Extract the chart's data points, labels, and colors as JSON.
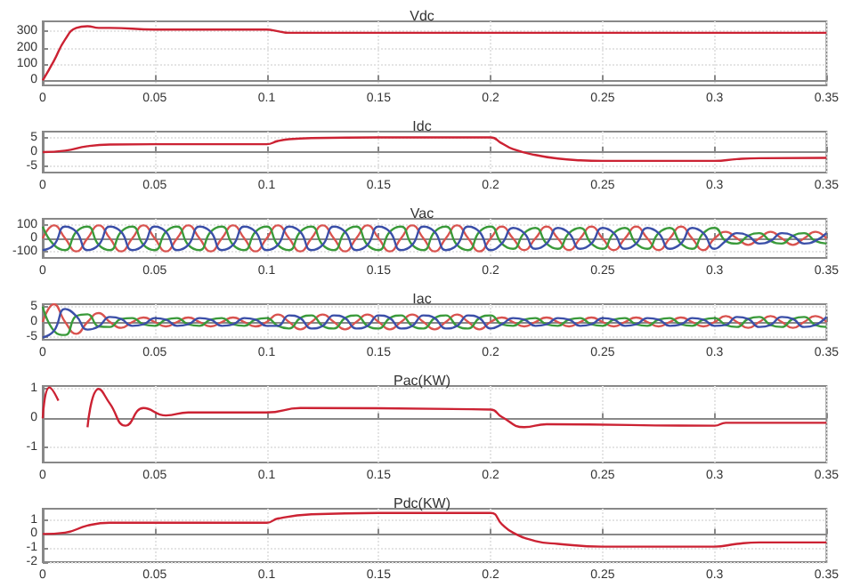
{
  "chart_data": [
    {
      "type": "line",
      "title": "Vdc",
      "x": [
        0,
        0.005,
        0.01,
        0.015,
        0.02,
        0.025,
        0.03,
        0.05,
        0.1,
        0.105,
        0.11,
        0.12,
        0.35
      ],
      "xlim": [
        0,
        0.35
      ],
      "xticks": [
        0,
        0.05,
        0.1,
        0.15,
        0.2,
        0.25,
        0.3,
        0.35
      ],
      "ylim": [
        -30,
        360
      ],
      "yticks": [
        0,
        100,
        200,
        300
      ],
      "grid": true,
      "marker": "none",
      "series": [
        {
          "color": "#cc2233",
          "values": [
            0,
            120,
            250,
            320,
            330,
            320,
            320,
            310,
            310,
            300,
            290,
            290,
            290
          ]
        }
      ]
    },
    {
      "type": "line",
      "title": "Idc",
      "x": [
        0,
        0.01,
        0.02,
        0.03,
        0.05,
        0.1,
        0.105,
        0.11,
        0.12,
        0.15,
        0.2,
        0.205,
        0.21,
        0.22,
        0.23,
        0.24,
        0.25,
        0.3,
        0.31,
        0.32,
        0.35
      ],
      "xlim": [
        0,
        0.35
      ],
      "xticks": [
        0,
        0.05,
        0.1,
        0.15,
        0.2,
        0.25,
        0.3,
        0.35
      ],
      "ylim": [
        -7,
        7
      ],
      "yticks": [
        -5,
        0,
        5
      ],
      "grid": true,
      "marker": "none",
      "series": [
        {
          "color": "#cc2233",
          "values": [
            0,
            0.5,
            2,
            2.6,
            2.7,
            2.7,
            3.8,
            4.4,
            4.8,
            5,
            5,
            3,
            1,
            -1,
            -2.2,
            -2.8,
            -3,
            -3,
            -2.4,
            -2.1,
            -2
          ]
        }
      ]
    },
    {
      "type": "line",
      "title": "Vac",
      "x": [
        0,
        0.005,
        0.01,
        0.015,
        0.02,
        0.025,
        0.03,
        0.035,
        0.04,
        0.045,
        0.05,
        0.055,
        0.06,
        0.065,
        0.07,
        0.075,
        0.08,
        0.085,
        0.09,
        0.095,
        0.1,
        0.105,
        0.11,
        0.115,
        0.12,
        0.125,
        0.13,
        0.135,
        0.14,
        0.145,
        0.15,
        0.155,
        0.16,
        0.165,
        0.17,
        0.175,
        0.18,
        0.185,
        0.19,
        0.195,
        0.2,
        0.205,
        0.21,
        0.215,
        0.22,
        0.225,
        0.23,
        0.235,
        0.24,
        0.245,
        0.25,
        0.255,
        0.26,
        0.265,
        0.27,
        0.275,
        0.28,
        0.285,
        0.29,
        0.295,
        0.3,
        0.305,
        0.31,
        0.315,
        0.32,
        0.325,
        0.33,
        0.335,
        0.34,
        0.345,
        0.35
      ],
      "xlim": [
        0,
        0.35
      ],
      "xticks": [
        0,
        0.05,
        0.1,
        0.15,
        0.2,
        0.25,
        0.3,
        0.35
      ],
      "ylim": [
        -150,
        150
      ],
      "yticks": [
        -100,
        0,
        100
      ],
      "grid": true,
      "marker": "none",
      "series": [
        {
          "color": "#d9534f",
          "values": [
            0,
            100,
            0,
            -100,
            0,
            100,
            0,
            -100,
            0,
            100,
            0,
            -100,
            0,
            100,
            0,
            -100,
            0,
            100,
            0,
            -100,
            0,
            100,
            0,
            -100,
            0,
            100,
            0,
            -100,
            0,
            100,
            0,
            -100,
            0,
            100,
            0,
            -100,
            0,
            100,
            0,
            -100,
            0,
            90,
            0,
            -90,
            0,
            90,
            0,
            -90,
            0,
            90,
            0,
            -90,
            0,
            90,
            0,
            -90,
            0,
            90,
            0,
            -90,
            0,
            50,
            0,
            -50,
            0,
            50,
            0,
            -50,
            0,
            50,
            0
          ]
        },
        {
          "color": "#3a9a3a",
          "values": [
            90,
            -50,
            -90,
            50,
            90,
            -50,
            -90,
            50,
            90,
            -50,
            -90,
            50,
            90,
            -50,
            -90,
            50,
            90,
            -50,
            -90,
            50,
            90,
            -50,
            -90,
            50,
            90,
            -50,
            -90,
            50,
            90,
            -50,
            -90,
            50,
            90,
            -50,
            -90,
            50,
            90,
            -50,
            -90,
            50,
            90,
            -40,
            -80,
            40,
            80,
            -40,
            -80,
            40,
            80,
            -40,
            -80,
            40,
            80,
            -40,
            -80,
            40,
            80,
            -40,
            -80,
            40,
            80,
            -20,
            -40,
            20,
            40,
            -20,
            -40,
            20,
            40,
            -20,
            -40
          ]
        },
        {
          "color": "#3b4fa8",
          "values": [
            -90,
            -50,
            90,
            50,
            -90,
            -50,
            90,
            50,
            -90,
            -50,
            90,
            50,
            -90,
            -50,
            90,
            50,
            -90,
            -50,
            90,
            50,
            -90,
            -50,
            90,
            50,
            -90,
            -50,
            90,
            50,
            -90,
            -50,
            90,
            50,
            -90,
            -50,
            90,
            50,
            -90,
            -50,
            90,
            50,
            -90,
            -40,
            80,
            40,
            -80,
            -40,
            80,
            40,
            -80,
            -40,
            80,
            40,
            -80,
            -40,
            80,
            40,
            -80,
            -40,
            80,
            40,
            -80,
            -20,
            40,
            20,
            -40,
            -20,
            40,
            20,
            -40,
            -20,
            40
          ]
        }
      ]
    },
    {
      "type": "line",
      "title": "Iac",
      "x": [
        0,
        0.005,
        0.01,
        0.015,
        0.02,
        0.025,
        0.03,
        0.035,
        0.04,
        0.045,
        0.05,
        0.055,
        0.06,
        0.065,
        0.07,
        0.075,
        0.08,
        0.085,
        0.09,
        0.095,
        0.1,
        0.105,
        0.11,
        0.115,
        0.12,
        0.125,
        0.13,
        0.135,
        0.14,
        0.145,
        0.15,
        0.155,
        0.16,
        0.165,
        0.17,
        0.175,
        0.18,
        0.185,
        0.19,
        0.195,
        0.2,
        0.205,
        0.21,
        0.215,
        0.22,
        0.225,
        0.23,
        0.235,
        0.24,
        0.245,
        0.25,
        0.255,
        0.26,
        0.265,
        0.27,
        0.275,
        0.28,
        0.285,
        0.29,
        0.295,
        0.3,
        0.305,
        0.31,
        0.315,
        0.32,
        0.325,
        0.33,
        0.335,
        0.34,
        0.345,
        0.35
      ],
      "xlim": [
        0,
        0.35
      ],
      "xticks": [
        0,
        0.05,
        0.1,
        0.15,
        0.2,
        0.25,
        0.3,
        0.35
      ],
      "ylim": [
        -6,
        6
      ],
      "yticks": [
        -5,
        0,
        5
      ],
      "grid": true,
      "marker": "none",
      "series": [
        {
          "color": "#d9534f",
          "values": [
            0,
            6,
            0,
            -4,
            0,
            3,
            0,
            -2,
            0,
            1.5,
            0,
            -1.5,
            0,
            1.5,
            0,
            -1.5,
            0,
            1.5,
            0,
            -1.5,
            0,
            2.5,
            0,
            -2.5,
            0,
            2.5,
            0,
            -2.5,
            0,
            2.5,
            0,
            -2.5,
            0,
            2.5,
            0,
            -2.5,
            0,
            2.5,
            0,
            -2.5,
            0,
            1.5,
            0,
            -1.5,
            0,
            1.5,
            0,
            -1.5,
            0,
            1.5,
            0,
            -1.5,
            0,
            1.5,
            0,
            -1.5,
            0,
            1.5,
            0,
            -1.5,
            0,
            2,
            0,
            -2,
            0,
            2,
            0,
            -2,
            0,
            2,
            0
          ]
        },
        {
          "color": "#3a9a3a",
          "values": [
            5.2,
            -3,
            -4.4,
            2,
            2.6,
            -1.5,
            -1.7,
            1,
            1.3,
            -0.8,
            -1.3,
            0.8,
            1.3,
            -0.8,
            -1.3,
            0.8,
            1.3,
            -0.8,
            -1.3,
            0.8,
            1.3,
            -1.3,
            -2.2,
            1.3,
            2.2,
            -1.3,
            -2.2,
            1.3,
            2.2,
            -1.3,
            -2.2,
            1.3,
            2.2,
            -1.3,
            -2.2,
            1.3,
            2.2,
            -1.3,
            -2.2,
            1.3,
            2.2,
            -0.8,
            -1.3,
            0.8,
            1.3,
            -0.8,
            -1.3,
            0.8,
            1.3,
            -0.8,
            -1.3,
            0.8,
            1.3,
            -0.8,
            -1.3,
            0.8,
            1.3,
            -0.8,
            -1.3,
            0.8,
            1.3,
            -1,
            -1.7,
            1,
            1.7,
            -1,
            -1.7,
            1,
            1.7,
            -1,
            -1.7
          ]
        },
        {
          "color": "#3b4fa8",
          "values": [
            -5.2,
            -3,
            4.4,
            2,
            -2.6,
            -1.5,
            1.7,
            1,
            -1.3,
            -0.8,
            1.3,
            0.8,
            -1.3,
            -0.8,
            1.3,
            0.8,
            -1.3,
            -0.8,
            1.3,
            0.8,
            -1.3,
            -1.3,
            2.2,
            1.3,
            -2.2,
            -1.3,
            2.2,
            1.3,
            -2.2,
            -1.3,
            2.2,
            1.3,
            -2.2,
            -1.3,
            2.2,
            1.3,
            -2.2,
            -1.3,
            2.2,
            1.3,
            -2.2,
            -0.8,
            1.3,
            0.8,
            -1.3,
            -0.8,
            1.3,
            0.8,
            -1.3,
            -0.8,
            1.3,
            0.8,
            -1.3,
            -0.8,
            1.3,
            0.8,
            -1.3,
            -0.8,
            1.3,
            0.8,
            -1.3,
            -1,
            1.7,
            1,
            -1.7,
            -1,
            1.7,
            1,
            -1.7,
            -1,
            1.7
          ]
        }
      ]
    },
    {
      "type": "line",
      "title": "Pac(KW)",
      "x": [
        0,
        0.003,
        0.007,
        0.012,
        0.017,
        0.02,
        0.025,
        0.03,
        0.037,
        0.045,
        0.055,
        0.065,
        0.1,
        0.115,
        0.2,
        0.205,
        0.215,
        0.225,
        0.3,
        0.305,
        0.35
      ],
      "xlim": [
        0,
        0.35
      ],
      "xticks": [
        0,
        0.05,
        0.1,
        0.15,
        0.2,
        0.25,
        0.3,
        0.35
      ],
      "ylim": [
        -1.5,
        1.1
      ],
      "yticks": [
        -1,
        0,
        1
      ],
      "grid": true,
      "marker": "none",
      "series": [
        {
          "color": "#cc2233",
          "values": [
            0,
            1.05,
            0.6,
            null,
            null,
            -0.3,
            1,
            0.5,
            -0.25,
            0.35,
            0.1,
            0.2,
            0.2,
            0.35,
            0.3,
            0.05,
            -0.3,
            -0.2,
            -0.25,
            -0.15,
            -0.15
          ]
        }
      ]
    },
    {
      "type": "line",
      "title": "Pdc(KW)",
      "x": [
        0,
        0.01,
        0.02,
        0.03,
        0.05,
        0.1,
        0.105,
        0.12,
        0.15,
        0.2,
        0.205,
        0.21,
        0.22,
        0.23,
        0.25,
        0.3,
        0.31,
        0.32,
        0.35
      ],
      "xlim": [
        0,
        0.35
      ],
      "xticks": [
        0,
        0.05,
        0.1,
        0.15,
        0.2,
        0.25,
        0.3,
        0.35
      ],
      "ylim": [
        -2,
        1.8
      ],
      "yticks": [
        -2,
        -1,
        0,
        1
      ],
      "grid": true,
      "marker": "none",
      "series": [
        {
          "color": "#cc2233",
          "values": [
            0,
            0.1,
            0.6,
            0.8,
            0.8,
            0.8,
            1.1,
            1.4,
            1.5,
            1.5,
            0.7,
            0.1,
            -0.5,
            -0.7,
            -0.9,
            -0.9,
            -0.7,
            -0.6,
            -0.6
          ]
        }
      ]
    }
  ]
}
